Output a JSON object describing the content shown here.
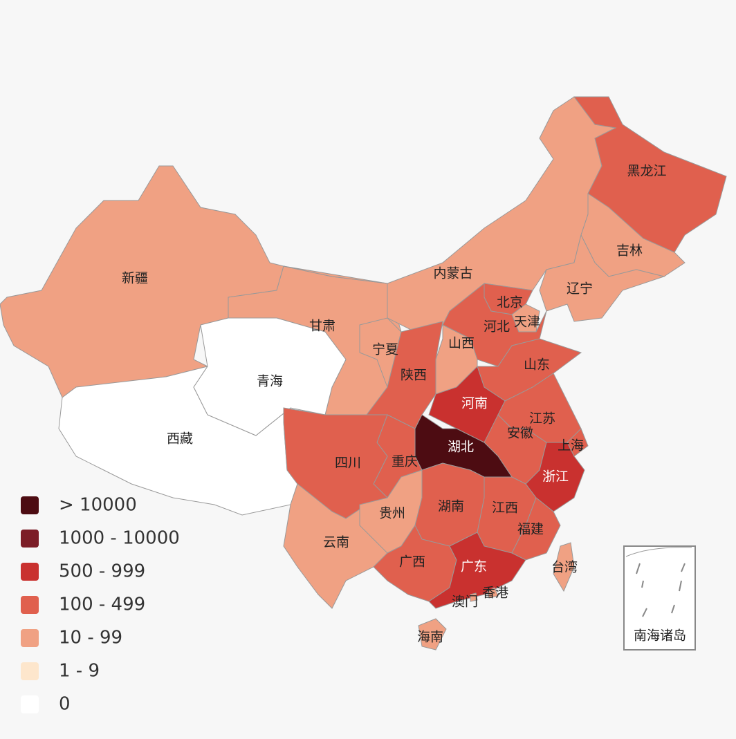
{
  "legend": [
    {
      "label": "> 10000",
      "color": "#4d0c12"
    },
    {
      "label": "1000 - 10000",
      "color": "#7c1d27"
    },
    {
      "label": "500 - 999",
      "color": "#c9312f"
    },
    {
      "label": "100 - 499",
      "color": "#e0604e"
    },
    {
      "label": "10 - 99",
      "color": "#f0a183"
    },
    {
      "label": "1 - 9",
      "color": "#fde6cc"
    },
    {
      "label": "0",
      "color": "#ffffff"
    }
  ],
  "regions": [
    {
      "name": "新疆",
      "color": "#f0a183"
    },
    {
      "name": "西藏",
      "color": "#ffffff"
    },
    {
      "name": "甘肃",
      "color": "#f0a183"
    },
    {
      "name": "青海",
      "color": "#ffffff"
    },
    {
      "name": "内蒙古",
      "color": "#f0a183"
    },
    {
      "name": "黑龙江",
      "color": "#e0604e"
    },
    {
      "name": "吉林",
      "color": "#f0a183"
    },
    {
      "name": "辽宁",
      "color": "#f0a183"
    },
    {
      "name": "北京",
      "color": "#e0604e"
    },
    {
      "name": "河北",
      "color": "#e0604e"
    },
    {
      "name": "天津",
      "color": "#f0a183"
    },
    {
      "name": "山西",
      "color": "#f0a183"
    },
    {
      "name": "山东",
      "color": "#e0604e"
    },
    {
      "name": "宁夏",
      "color": "#f0a183"
    },
    {
      "name": "陕西",
      "color": "#e0604e"
    },
    {
      "name": "河南",
      "color": "#c9312f"
    },
    {
      "name": "江苏",
      "color": "#e0604e"
    },
    {
      "name": "安徽",
      "color": "#e0604e"
    },
    {
      "name": "上海",
      "color": "#e0604e"
    },
    {
      "name": "湖北",
      "color": "#4d0c12"
    },
    {
      "name": "浙江",
      "color": "#c9312f"
    },
    {
      "name": "重庆",
      "color": "#e0604e"
    },
    {
      "name": "四川",
      "color": "#e0604e"
    },
    {
      "name": "云南",
      "color": "#f0a183"
    },
    {
      "name": "贵州",
      "color": "#f0a183"
    },
    {
      "name": "湖南",
      "color": "#e0604e"
    },
    {
      "name": "江西",
      "color": "#e0604e"
    },
    {
      "name": "福建",
      "color": "#e0604e"
    },
    {
      "name": "广西",
      "color": "#e0604e"
    },
    {
      "name": "广东",
      "color": "#c9312f"
    },
    {
      "name": "海南",
      "color": "#f0a183"
    },
    {
      "name": "台湾",
      "color": "#f0a183"
    },
    {
      "name": "香港",
      "color": "#f0a183"
    },
    {
      "name": "澳门",
      "color": "#f0a183"
    }
  ],
  "inset_label": "南海诸岛"
}
